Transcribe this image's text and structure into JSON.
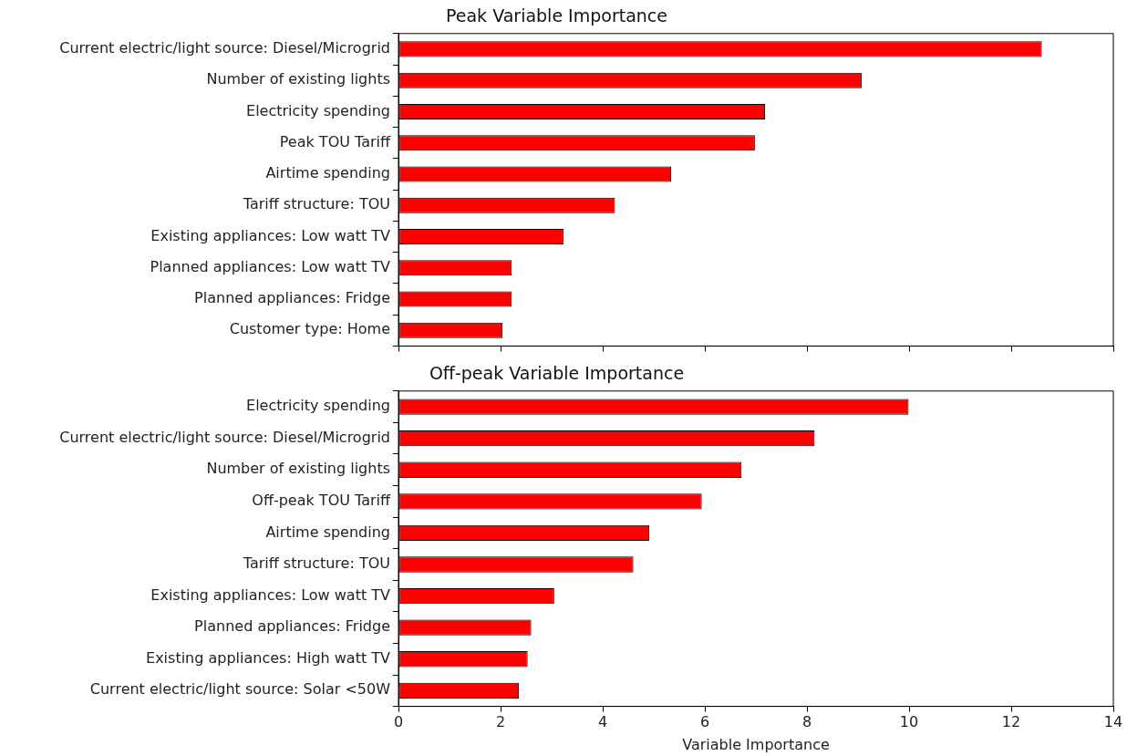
{
  "chart_data": [
    {
      "type": "bar",
      "orientation": "horizontal",
      "title": "Peak Variable Importance",
      "categories": [
        "Current electric/light source: Diesel/Microgrid",
        "Number of existing lights",
        "Electricity spending",
        "Peak TOU Tariff",
        "Airtime spending",
        "Tariff structure: TOU",
        "Existing appliances: Low watt TV",
        "Planned appliances: Low watt TV",
        "Planned appliances: Fridge",
        "Customer type: Home"
      ],
      "values": [
        12.6,
        9.07,
        7.18,
        6.98,
        5.34,
        4.24,
        3.23,
        2.22,
        2.22,
        2.04
      ],
      "color": "#ff0000",
      "xlim": [
        0,
        14
      ],
      "xticks": [
        0,
        2,
        4,
        6,
        8,
        10,
        12,
        14
      ],
      "tick_labels": "y",
      "grid": false,
      "legend": false
    },
    {
      "type": "bar",
      "orientation": "horizontal",
      "title": "Off-peak Variable Importance",
      "xlabel": "Variable Importance",
      "categories": [
        "Electricity spending",
        "Current electric/light source: Diesel/Microgrid",
        "Number of existing lights",
        "Off-peak TOU Tariff",
        "Airtime spending",
        "Tariff structure: TOU",
        "Existing appliances: Low watt TV",
        "Planned appliances: Fridge",
        "Existing appliances: High watt TV",
        "Current electric/light source: Solar <50W"
      ],
      "values": [
        9.99,
        8.15,
        6.72,
        5.94,
        4.91,
        4.6,
        3.05,
        2.6,
        2.53,
        2.36
      ],
      "color": "#ff0000",
      "xlim": [
        0,
        14
      ],
      "xticks": [
        0,
        2,
        4,
        6,
        8,
        10,
        12,
        14
      ],
      "grid": false,
      "legend": false
    }
  ]
}
